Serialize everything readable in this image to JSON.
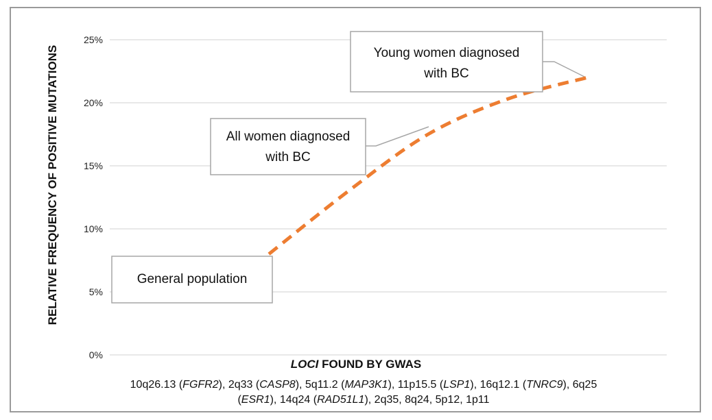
{
  "chart_data": {
    "type": "line",
    "ylabel": "RELATIVE FREQUENCY OF POSITIVE MUTATIONS",
    "xlabel_italic": "LOCI",
    "xlabel_rest": " FOUND BY GWAS",
    "yticks": [
      "0%",
      "5%",
      "10%",
      "15%",
      "20%",
      "25%"
    ],
    "ylim": [
      0,
      25
    ],
    "grid": true,
    "series": [
      {
        "style": "dashed",
        "color": "#ED7D31",
        "points": [
          {
            "x": 0,
            "y": 8
          },
          {
            "x": 0.25,
            "y": 13
          },
          {
            "x": 0.5,
            "y": 17.5
          },
          {
            "x": 0.75,
            "y": 20.3
          },
          {
            "x": 1.0,
            "y": 22
          }
        ]
      }
    ],
    "annotations": [
      {
        "lines": [
          "General population"
        ]
      },
      {
        "lines": [
          "All women diagnosed",
          "with BC"
        ]
      },
      {
        "lines": [
          "Young women diagnosed",
          "with BC"
        ]
      }
    ],
    "loci_line1": [
      {
        "t": "10q26.13 (",
        "i": false
      },
      {
        "t": "FGFR2",
        "i": true
      },
      {
        "t": "), 2q33 (",
        "i": false
      },
      {
        "t": "CASP8",
        "i": true
      },
      {
        "t": "), 5q11.2 (",
        "i": false
      },
      {
        "t": "MAP3K1",
        "i": true
      },
      {
        "t": "), 11p15.5 (",
        "i": false
      },
      {
        "t": "LSP1",
        "i": true
      },
      {
        "t": "), 16q12.1 (",
        "i": false
      },
      {
        "t": "TNRC9",
        "i": true
      },
      {
        "t": "), 6q25",
        "i": false
      }
    ],
    "loci_line2": [
      {
        "t": "(",
        "i": false
      },
      {
        "t": "ESR1",
        "i": true
      },
      {
        "t": "), 14q24 (",
        "i": false
      },
      {
        "t": "RAD51L1",
        "i": true
      },
      {
        "t": "), 2q35, 8q24, 5p12, 1p11",
        "i": false
      }
    ]
  },
  "colors": {
    "line": "#ED7D31",
    "grid": "#d9d9d9",
    "border": "#9a9a9a"
  }
}
